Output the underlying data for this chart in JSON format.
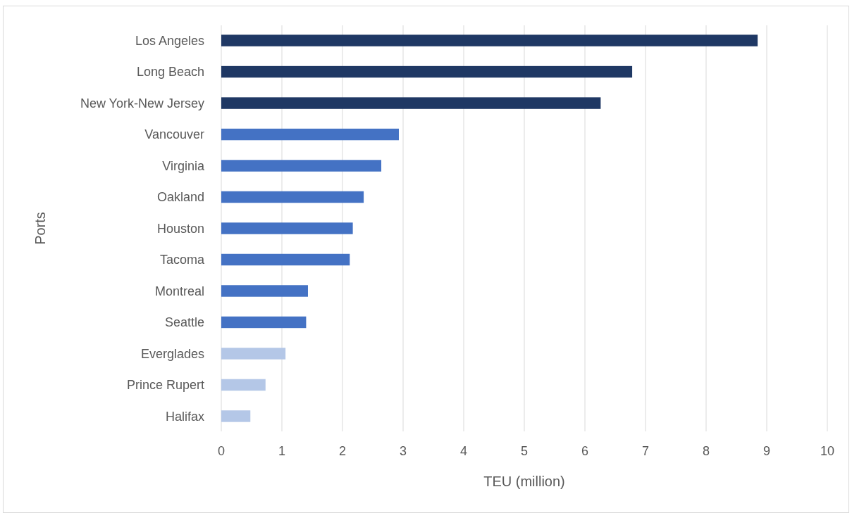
{
  "chart_data": {
    "type": "bar",
    "orientation": "horizontal",
    "xlabel": "TEU (million)",
    "ylabel": "Ports",
    "categories": [
      "Los Angeles",
      "Long Beach",
      "New York-New Jersey",
      "Vancouver",
      "Virginia",
      "Oakland",
      "Houston",
      "Tacoma",
      "Montreal",
      "Seattle",
      "Everglades",
      "Prince Rupert",
      "Halifax"
    ],
    "values": [
      8.85,
      6.78,
      6.26,
      2.93,
      2.64,
      2.35,
      2.17,
      2.12,
      1.43,
      1.4,
      1.06,
      0.73,
      0.48
    ],
    "colors": [
      "#1f3864",
      "#1f3864",
      "#1f3864",
      "#4472c4",
      "#4472c4",
      "#4472c4",
      "#4472c4",
      "#4472c4",
      "#4472c4",
      "#4472c4",
      "#b4c7e7",
      "#b4c7e7",
      "#b4c7e7"
    ],
    "xlim": [
      0,
      10
    ],
    "xticks": [
      0,
      1,
      2,
      3,
      4,
      5,
      6,
      7,
      8,
      9,
      10
    ],
    "grid": "x"
  }
}
